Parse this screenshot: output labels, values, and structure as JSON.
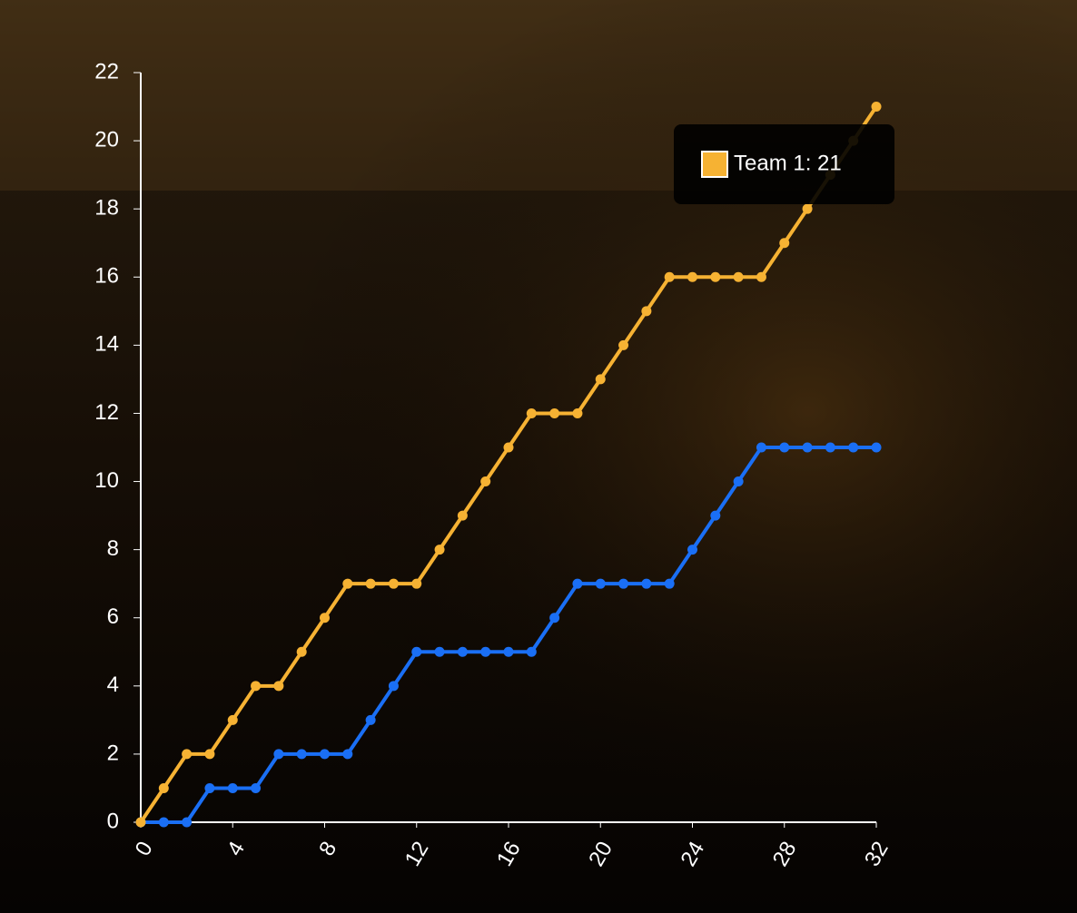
{
  "chart_data": {
    "type": "line",
    "x": [
      0,
      1,
      2,
      3,
      4,
      5,
      6,
      7,
      8,
      9,
      10,
      11,
      12,
      13,
      14,
      15,
      16,
      17,
      18,
      19,
      20,
      21,
      22,
      23,
      24,
      25,
      26,
      27,
      28,
      29,
      30,
      31,
      32
    ],
    "series": [
      {
        "name": "Team 1",
        "color": "#f6b233",
        "values": [
          0,
          1,
          2,
          2,
          3,
          4,
          4,
          5,
          6,
          7,
          7,
          7,
          7,
          8,
          9,
          10,
          11,
          12,
          12,
          12,
          13,
          14,
          15,
          16,
          16,
          16,
          16,
          16,
          17,
          18,
          19,
          20,
          21
        ]
      },
      {
        "color": "#1a6ff5",
        "values": [
          0,
          0,
          0,
          1,
          1,
          1,
          2,
          2,
          2,
          2,
          3,
          4,
          5,
          5,
          5,
          5,
          5,
          5,
          6,
          7,
          7,
          7,
          7,
          7,
          8,
          9,
          10,
          11,
          11,
          11,
          11,
          11,
          11
        ]
      }
    ],
    "xlim": [
      0,
      32
    ],
    "xticks": [
      0,
      4,
      8,
      12,
      16,
      20,
      24,
      28,
      32
    ],
    "ylim": [
      0,
      22
    ],
    "yticks": [
      0,
      2,
      4,
      6,
      8,
      10,
      12,
      14,
      16,
      18,
      20,
      22
    ],
    "grid": false,
    "tooltip": "Team 1: 21"
  }
}
